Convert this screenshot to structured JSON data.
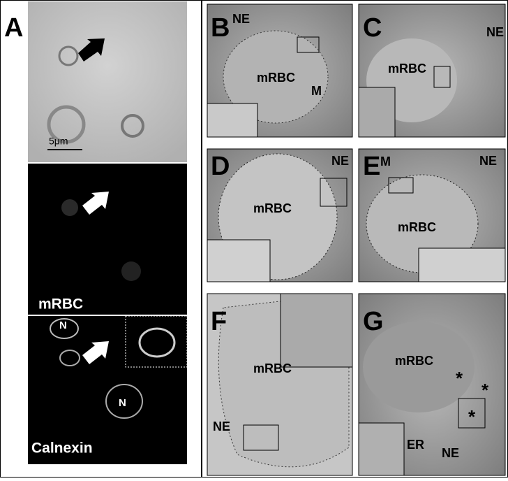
{
  "panels": [
    {
      "letter": "A",
      "scale_bar": "5μm",
      "labels": [
        "mRBC",
        "N",
        "N",
        "Calnexin"
      ]
    },
    {
      "letter": "B",
      "labels": [
        "NE",
        "mRBC",
        "M"
      ]
    },
    {
      "letter": "C",
      "labels": [
        "NE",
        "mRBC"
      ]
    },
    {
      "letter": "D",
      "labels": [
        "NE",
        "mRBC"
      ]
    },
    {
      "letter": "E",
      "labels": [
        "M",
        "NE",
        "mRBC"
      ]
    },
    {
      "letter": "F",
      "labels": [
        "mRBC",
        "NE"
      ]
    },
    {
      "letter": "G",
      "labels": [
        "mRBC",
        "*",
        "*",
        "*",
        "ER",
        "NE"
      ]
    }
  ]
}
